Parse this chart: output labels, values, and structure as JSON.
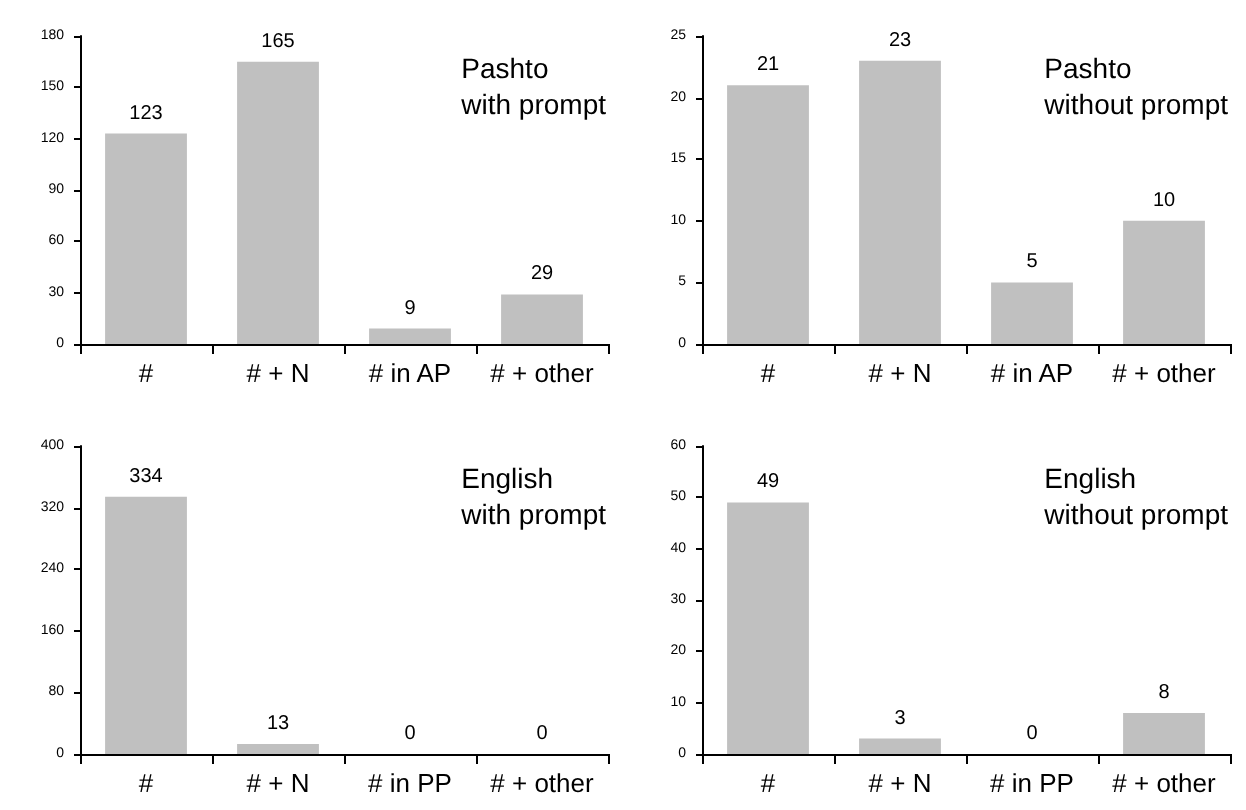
{
  "chart_data": [
    {
      "type": "bar",
      "title": "Pashto\nwith prompt",
      "categories": [
        "#",
        "# + N",
        "# in AP",
        "# + other"
      ],
      "values": [
        123,
        165,
        9,
        29
      ],
      "color": "#c0c0c0",
      "ylim": [
        0,
        180
      ],
      "yticks": [
        0,
        30,
        60,
        90,
        120,
        150,
        180
      ],
      "data_labels": true
    },
    {
      "type": "bar",
      "title": "Pashto\nwithout prompt",
      "categories": [
        "#",
        "# + N",
        "# in AP",
        "# + other"
      ],
      "values": [
        21,
        23,
        5,
        10
      ],
      "color": "#c0c0c0",
      "ylim": [
        0,
        25
      ],
      "yticks": [
        0,
        5,
        10,
        15,
        20,
        25
      ],
      "data_labels": true
    },
    {
      "type": "bar",
      "title": "English\nwith prompt",
      "categories": [
        "#",
        "# + N",
        "# in PP",
        "# + other"
      ],
      "values": [
        334,
        13,
        0,
        0
      ],
      "color": "#c0c0c0",
      "ylim": [
        0,
        400
      ],
      "yticks": [
        0,
        80,
        160,
        240,
        320,
        400
      ],
      "data_labels": true
    },
    {
      "type": "bar",
      "title": "English\nwithout prompt",
      "categories": [
        "#",
        "# + N",
        "# in PP",
        "# + other"
      ],
      "values": [
        49,
        3,
        0,
        8
      ],
      "color": "#c0c0c0",
      "ylim": [
        0,
        60
      ],
      "yticks": [
        0,
        10,
        20,
        30,
        40,
        50,
        60
      ],
      "data_labels": true
    }
  ]
}
